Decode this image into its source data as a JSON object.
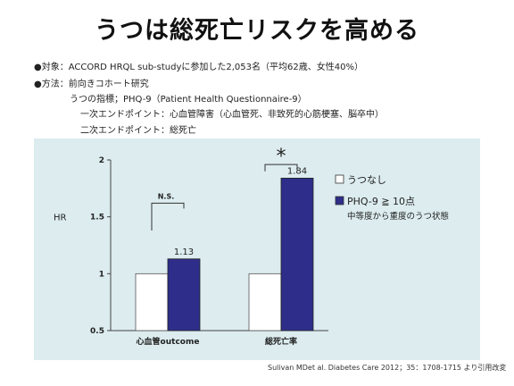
{
  "title": "うつは総死亡リスクを高める",
  "info": {
    "line1": "●対象：ACCORD HRQL sub-studyに参加した2,053名（平均62歳、女性40%）",
    "line2": "●方法：前向きコホート研究",
    "line3": "うつの指標；PHQ-9（Patient  Health Questionnaire-9）",
    "line4": "一次エンドポイント：心血管障害（心血管死、非致死的心筋梗塞、脳卒中）",
    "line5": "二次エンドポイント：総死亡"
  },
  "citation": "Sulivan MDet al. Diabetes Care 2012；35：1708-1715 より引用改変",
  "chart_data": {
    "type": "bar",
    "ylabel": "HR",
    "ylim": [
      0.5,
      2
    ],
    "yticks": [
      "0.5",
      "1",
      "1.5",
      "2"
    ],
    "categories": [
      "心血管outcome",
      "総死亡率"
    ],
    "series": [
      {
        "name": "うつなし",
        "values": [
          1,
          1
        ],
        "color": "#ffffff"
      },
      {
        "name": "PHQ-9 ≧ 10点",
        "values": [
          1.13,
          1.84
        ],
        "color": "#2e2e8a"
      }
    ],
    "legend_note": "中等度から重度のうつ状態",
    "value_labels": [
      "1.13",
      "1.84"
    ],
    "significance": [
      "N.S.",
      "*"
    ],
    "legend_position": "right"
  }
}
